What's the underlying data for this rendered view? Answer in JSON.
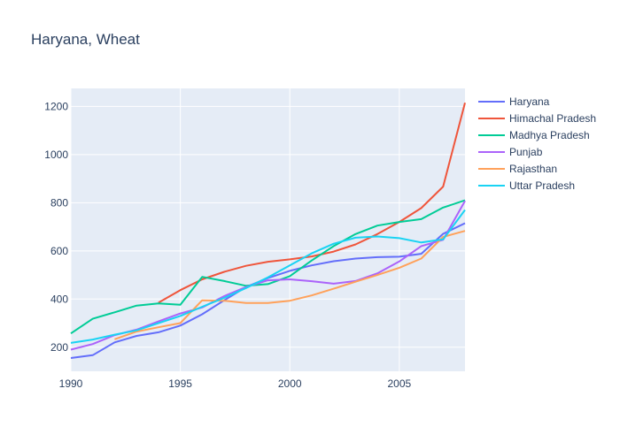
{
  "chart_data": {
    "type": "line",
    "title": "Haryana, Wheat",
    "xlabel": "",
    "ylabel": "",
    "xlim": [
      1990,
      2008
    ],
    "ylim": [
      100,
      1275
    ],
    "x_ticks": [
      1990,
      1995,
      2000,
      2005
    ],
    "y_ticks": [
      200,
      400,
      600,
      800,
      1000,
      1200
    ],
    "grid": true,
    "legend_position": "right",
    "colors": {
      "plot_background": "#e5ecf6",
      "grid": "#ffffff",
      "text": "#2a3f5f"
    },
    "series": [
      {
        "name": "Haryana",
        "color": "#636efa",
        "x": [
          1990,
          1991,
          1992,
          1993,
          1994,
          1995,
          1996,
          1997,
          1998,
          1999,
          2000,
          2001,
          2002,
          2003,
          2004,
          2005,
          2006,
          2007,
          2008
        ],
        "y": [
          155,
          167,
          220,
          247,
          262,
          290,
          337,
          395,
          450,
          487,
          517,
          540,
          557,
          568,
          574,
          576,
          588,
          671,
          715
        ]
      },
      {
        "name": "Himachal Pradesh",
        "color": "#ef553b",
        "x": [
          1994,
          1995,
          1996,
          1997,
          1998,
          1999,
          2000,
          2001,
          2002,
          2003,
          2004,
          2005,
          2006,
          2007,
          2008
        ],
        "y": [
          385,
          437,
          482,
          513,
          538,
          555,
          565,
          577,
          597,
          627,
          670,
          720,
          778,
          867,
          1215
        ]
      },
      {
        "name": "Madhya Pradesh",
        "color": "#00cc96",
        "x": [
          1990,
          1991,
          1992,
          1993,
          1994,
          1995,
          1996,
          1997,
          1998,
          1999,
          2000,
          2001,
          2002,
          2003,
          2004,
          2005,
          2006,
          2007,
          2008
        ],
        "y": [
          257,
          318,
          345,
          373,
          382,
          376,
          492,
          475,
          455,
          462,
          495,
          560,
          620,
          670,
          705,
          720,
          732,
          780,
          810
        ]
      },
      {
        "name": "Punjab",
        "color": "#ab63fa",
        "x": [
          1990,
          1991,
          1992,
          1993,
          1994,
          1995,
          1996,
          1997,
          1998,
          1999,
          2000,
          2001,
          2002,
          2003,
          2004,
          2005,
          2006,
          2007,
          2008
        ],
        "y": [
          190,
          213,
          250,
          273,
          307,
          340,
          365,
          412,
          450,
          478,
          482,
          474,
          464,
          475,
          507,
          556,
          620,
          646,
          808
        ]
      },
      {
        "name": "Rajasthan",
        "color": "#ffa15a",
        "x": [
          1992,
          1993,
          1994,
          1995,
          1996,
          1997,
          1998,
          1999,
          2000,
          2001,
          2002,
          2003,
          2004,
          2005,
          2006,
          2007,
          2008
        ],
        "y": [
          233,
          265,
          283,
          300,
          395,
          393,
          384,
          384,
          393,
          415,
          443,
          472,
          500,
          530,
          568,
          658,
          683
        ]
      },
      {
        "name": "Uttar Pradesh",
        "color": "#19d3f3",
        "x": [
          1990,
          1991,
          1992,
          1993,
          1994,
          1995,
          1996,
          1997,
          1998,
          1999,
          2000,
          2001,
          2002,
          2003,
          2004,
          2005,
          2006,
          2007,
          2008
        ],
        "y": [
          218,
          232,
          252,
          270,
          300,
          330,
          368,
          405,
          446,
          490,
          540,
          590,
          630,
          655,
          660,
          653,
          635,
          648,
          770
        ]
      }
    ]
  }
}
